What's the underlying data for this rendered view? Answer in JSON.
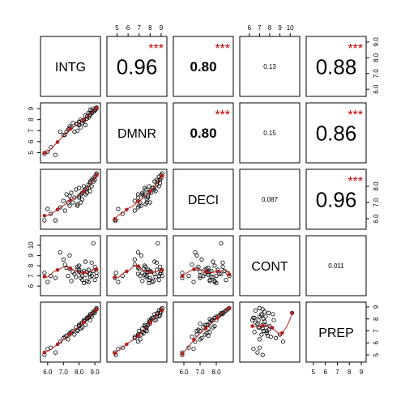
{
  "chart_data": {
    "type": "scatter",
    "title": "",
    "variables": [
      "INTG",
      "DMNR",
      "DECI",
      "CONT",
      "PREP"
    ],
    "axis_ticks": {
      "INTG": [
        "6.0",
        "7.0",
        "8.0",
        "9.0"
      ],
      "DMNR": [
        "5",
        "6",
        "7",
        "8",
        "9"
      ],
      "DECI": [
        "6.0",
        "7.0",
        "8.0"
      ],
      "CONT": [
        "6",
        "7",
        "8",
        "9",
        "10"
      ],
      "PREP": [
        "5",
        "6",
        "7",
        "8",
        "9"
      ]
    },
    "axis_ranges": {
      "INTG": [
        5.7,
        9.2
      ],
      "DMNR": [
        4.3,
        9.3
      ],
      "DECI": [
        5.5,
        8.9
      ],
      "CONT": [
        5.3,
        10.7
      ],
      "PREP": [
        4.6,
        9.2
      ]
    },
    "correlations": [
      {
        "row": 0,
        "col": 1,
        "label": "0.96",
        "stars": "***"
      },
      {
        "row": 0,
        "col": 2,
        "label": "0.80",
        "stars": "***"
      },
      {
        "row": 0,
        "col": 3,
        "label": "0.13",
        "stars": ""
      },
      {
        "row": 0,
        "col": 4,
        "label": "0.88",
        "stars": "***"
      },
      {
        "row": 1,
        "col": 2,
        "label": "0.80",
        "stars": "***"
      },
      {
        "row": 1,
        "col": 3,
        "label": "0.15",
        "stars": ""
      },
      {
        "row": 1,
        "col": 4,
        "label": "0.86",
        "stars": "***"
      },
      {
        "row": 2,
        "col": 3,
        "label": "0.087",
        "stars": ""
      },
      {
        "row": 2,
        "col": 4,
        "label": "0.96",
        "stars": "***"
      },
      {
        "row": 3,
        "col": 4,
        "label": "0.011",
        "stars": ""
      }
    ],
    "observations": {
      "INTG": [
        5.8,
        6.0,
        6.2,
        6.5,
        6.8,
        7.0,
        7.2,
        7.3,
        7.4,
        7.5,
        7.6,
        7.7,
        7.8,
        7.9,
        8.0,
        8.0,
        8.1,
        8.1,
        8.2,
        8.3,
        8.3,
        8.4,
        8.4,
        8.5,
        8.6,
        8.6,
        8.7,
        8.7,
        8.8,
        8.8,
        8.9,
        8.9,
        9.0,
        9.0,
        9.1,
        9.1,
        8.2,
        7.1,
        7.9,
        8.5,
        8.0,
        7.4,
        8.7
      ],
      "DMNR": [
        4.9,
        5.1,
        5.5,
        4.8,
        6.9,
        6.6,
        6.9,
        7.1,
        7.4,
        7.3,
        7.7,
        6.9,
        7.6,
        7.0,
        7.5,
        7.8,
        7.3,
        8.0,
        7.7,
        8.0,
        7.9,
        7.5,
        8.4,
        8.1,
        8.2,
        8.6,
        8.5,
        8.9,
        8.6,
        8.8,
        8.7,
        9.0,
        8.9,
        8.8,
        9.0,
        9.1,
        7.9,
        6.6,
        7.6,
        8.3,
        7.8,
        7.2,
        8.4
      ],
      "DECI": [
        5.9,
        6.6,
        6.3,
        5.9,
        6.7,
        7.1,
        7.5,
        7.0,
        7.4,
        7.6,
        7.0,
        7.3,
        7.8,
        6.8,
        7.9,
        7.3,
        7.5,
        7.0,
        7.2,
        7.7,
        8.0,
        7.5,
        7.8,
        7.6,
        7.9,
        8.1,
        7.7,
        8.2,
        8.4,
        8.0,
        8.3,
        8.5,
        8.4,
        8.6,
        8.7,
        8.8,
        7.6,
        6.5,
        6.9,
        7.9,
        7.4,
        6.8,
        8.3
      ],
      "CONT": [
        7.3,
        6.4,
        7.0,
        6.8,
        9.3,
        8.6,
        7.8,
        7.0,
        7.7,
        6.5,
        7.4,
        7.2,
        6.9,
        7.7,
        8.0,
        7.6,
        7.3,
        6.8,
        7.0,
        7.5,
        6.3,
        7.1,
        8.4,
        7.4,
        6.4,
        7.6,
        6.9,
        7.2,
        8.3,
        7.0,
        10.2,
        7.5,
        7.9,
        6.6,
        7.3,
        7.0,
        6.6,
        8.1,
        7.9,
        6.5,
        7.4,
        9.0,
        7.2
      ],
      "PREP": [
        5.0,
        5.5,
        5.6,
        5.2,
        6.1,
        6.4,
        6.6,
        6.3,
        6.8,
        6.9,
        7.0,
        6.7,
        7.3,
        7.0,
        7.4,
        7.5,
        7.2,
        7.6,
        7.3,
        7.8,
        7.9,
        7.5,
        7.9,
        8.0,
        8.1,
        8.2,
        7.9,
        8.3,
        8.4,
        8.2,
        8.5,
        8.6,
        8.5,
        8.7,
        8.8,
        8.9,
        7.7,
        6.5,
        7.1,
        8.1,
        7.5,
        6.7,
        8.4
      ]
    }
  }
}
